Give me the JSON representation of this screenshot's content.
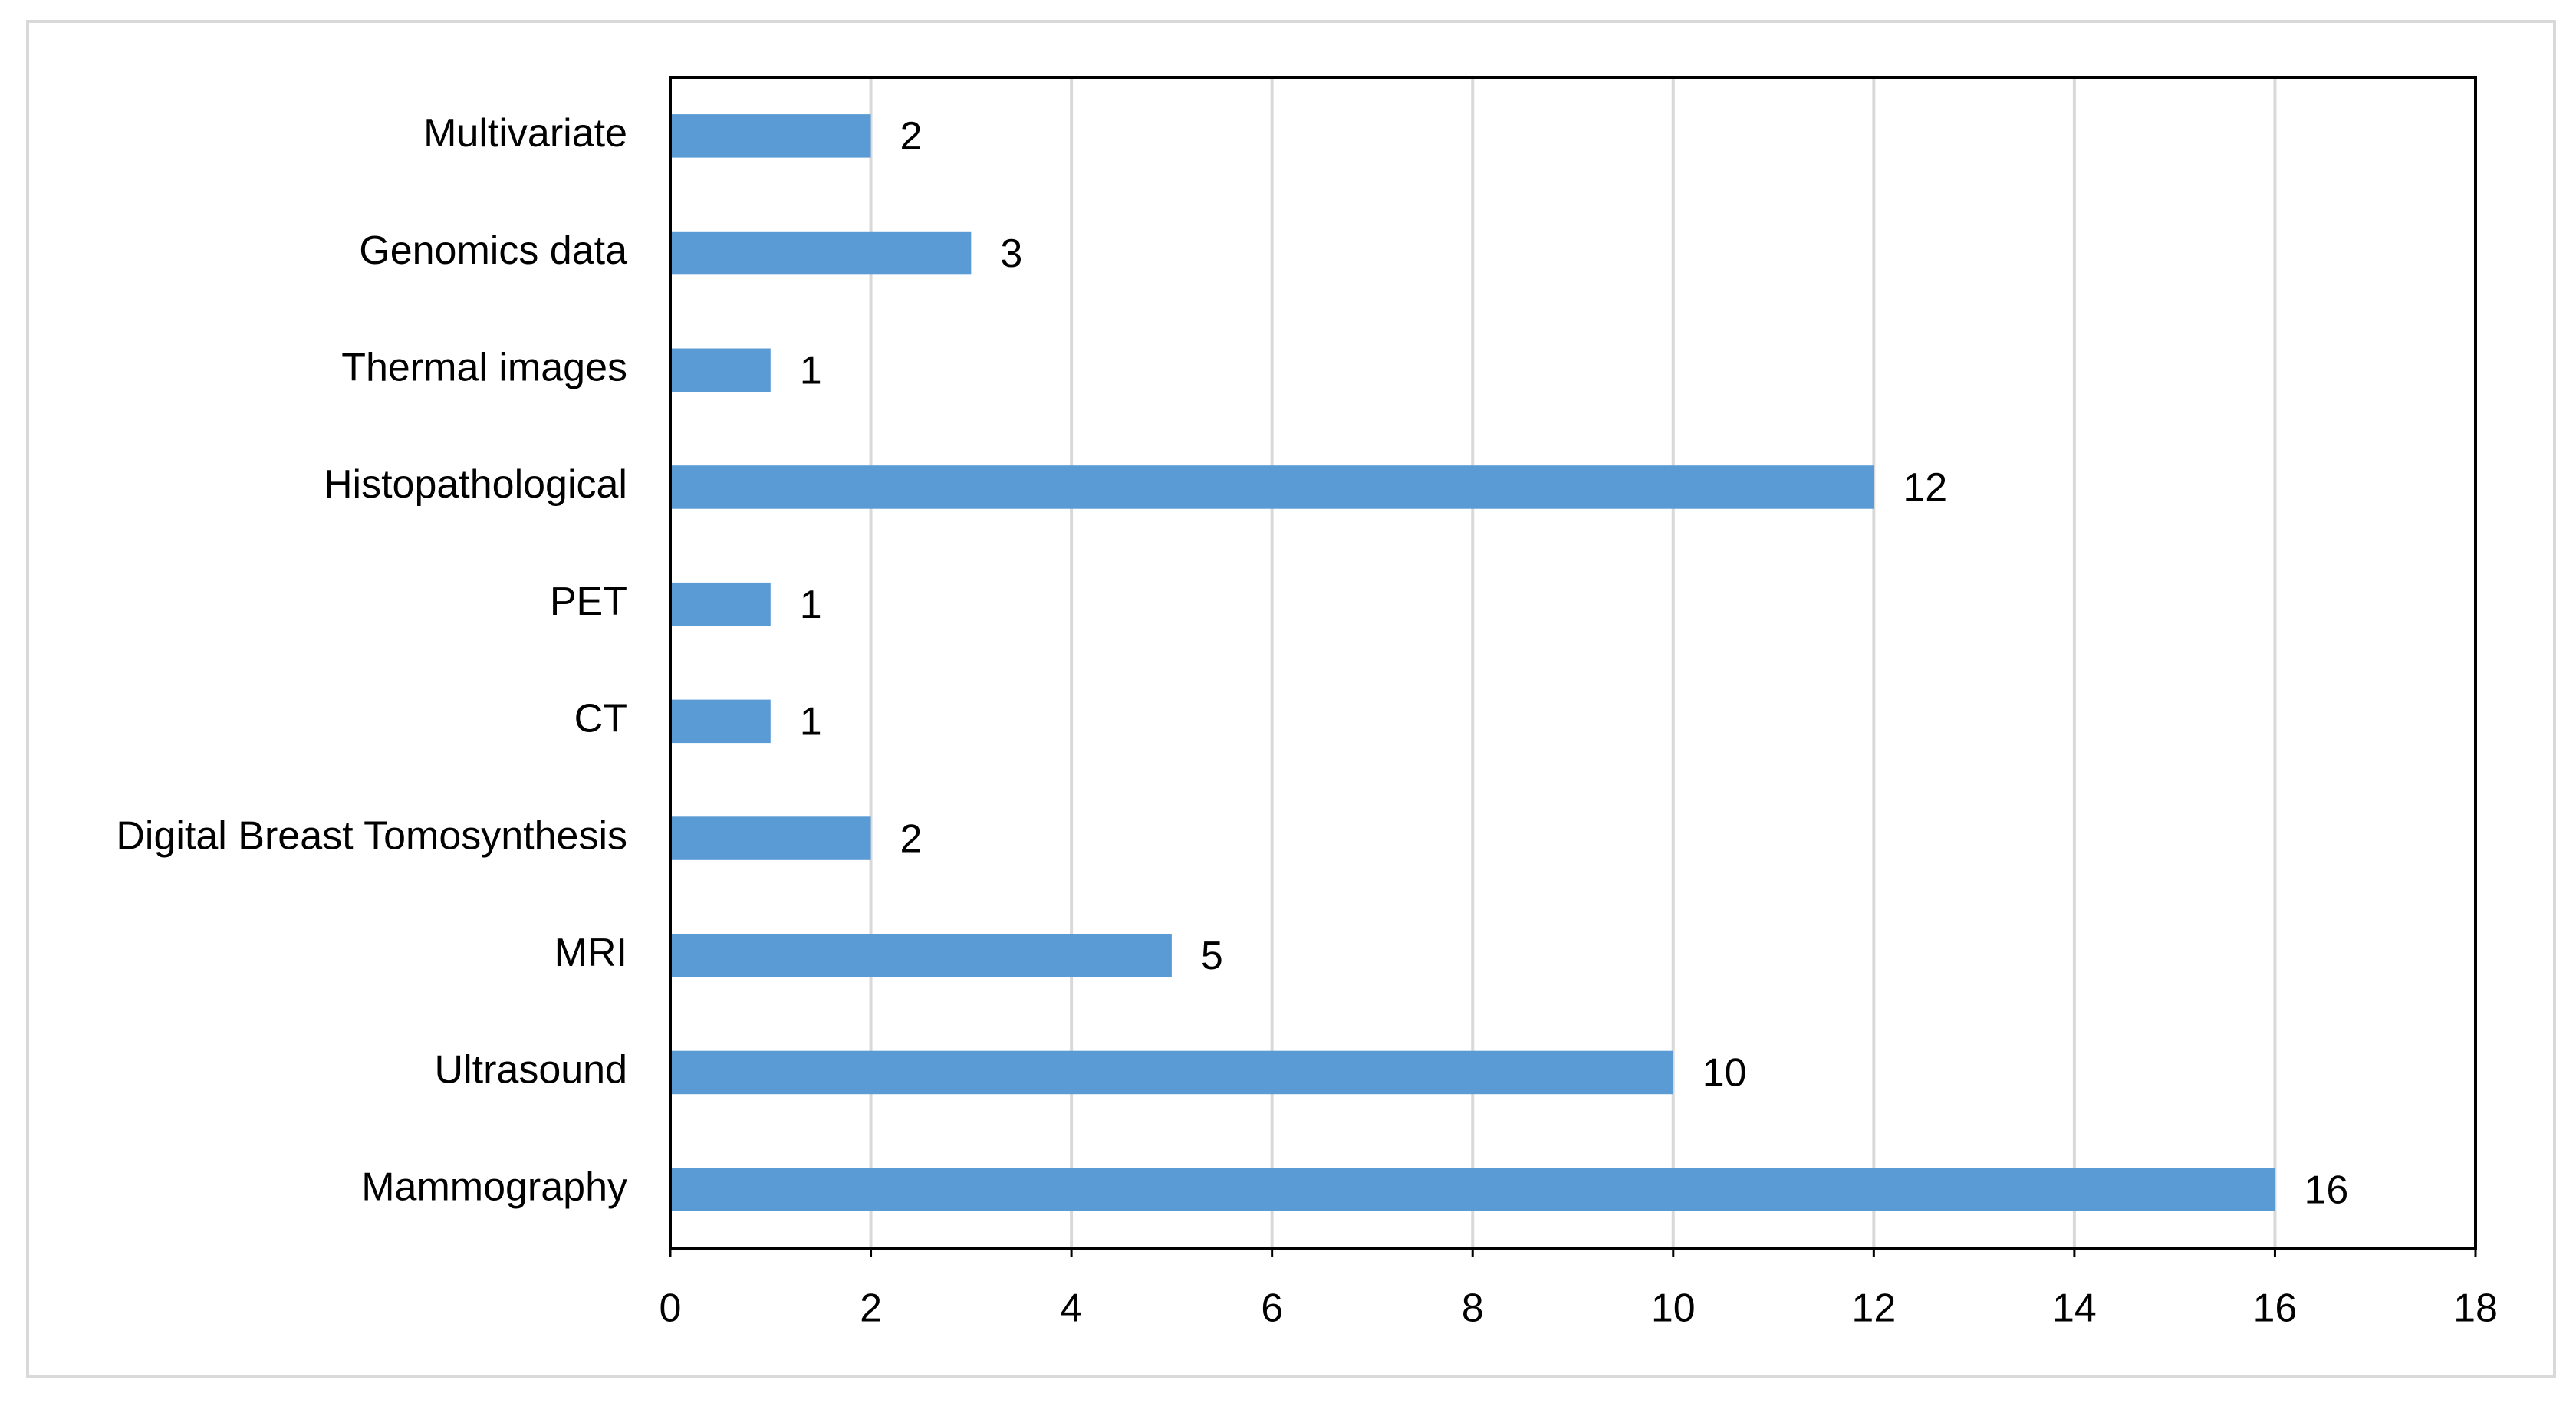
{
  "chart_data": {
    "type": "hbar",
    "categories": [
      "Multivariate",
      "Genomics data",
      "Thermal images",
      "Histopathological",
      "PET",
      "CT",
      "Digital Breast Tomosynthesis",
      "MRI",
      "Ultrasound",
      "Mammography"
    ],
    "values": [
      2,
      3,
      1,
      12,
      1,
      1,
      2,
      5,
      10,
      16
    ],
    "color": "#5b9bd5",
    "xlim": [
      0,
      18
    ],
    "xticks": [
      0,
      2,
      4,
      6,
      8,
      10,
      12,
      14,
      16,
      18
    ],
    "grid": true
  }
}
